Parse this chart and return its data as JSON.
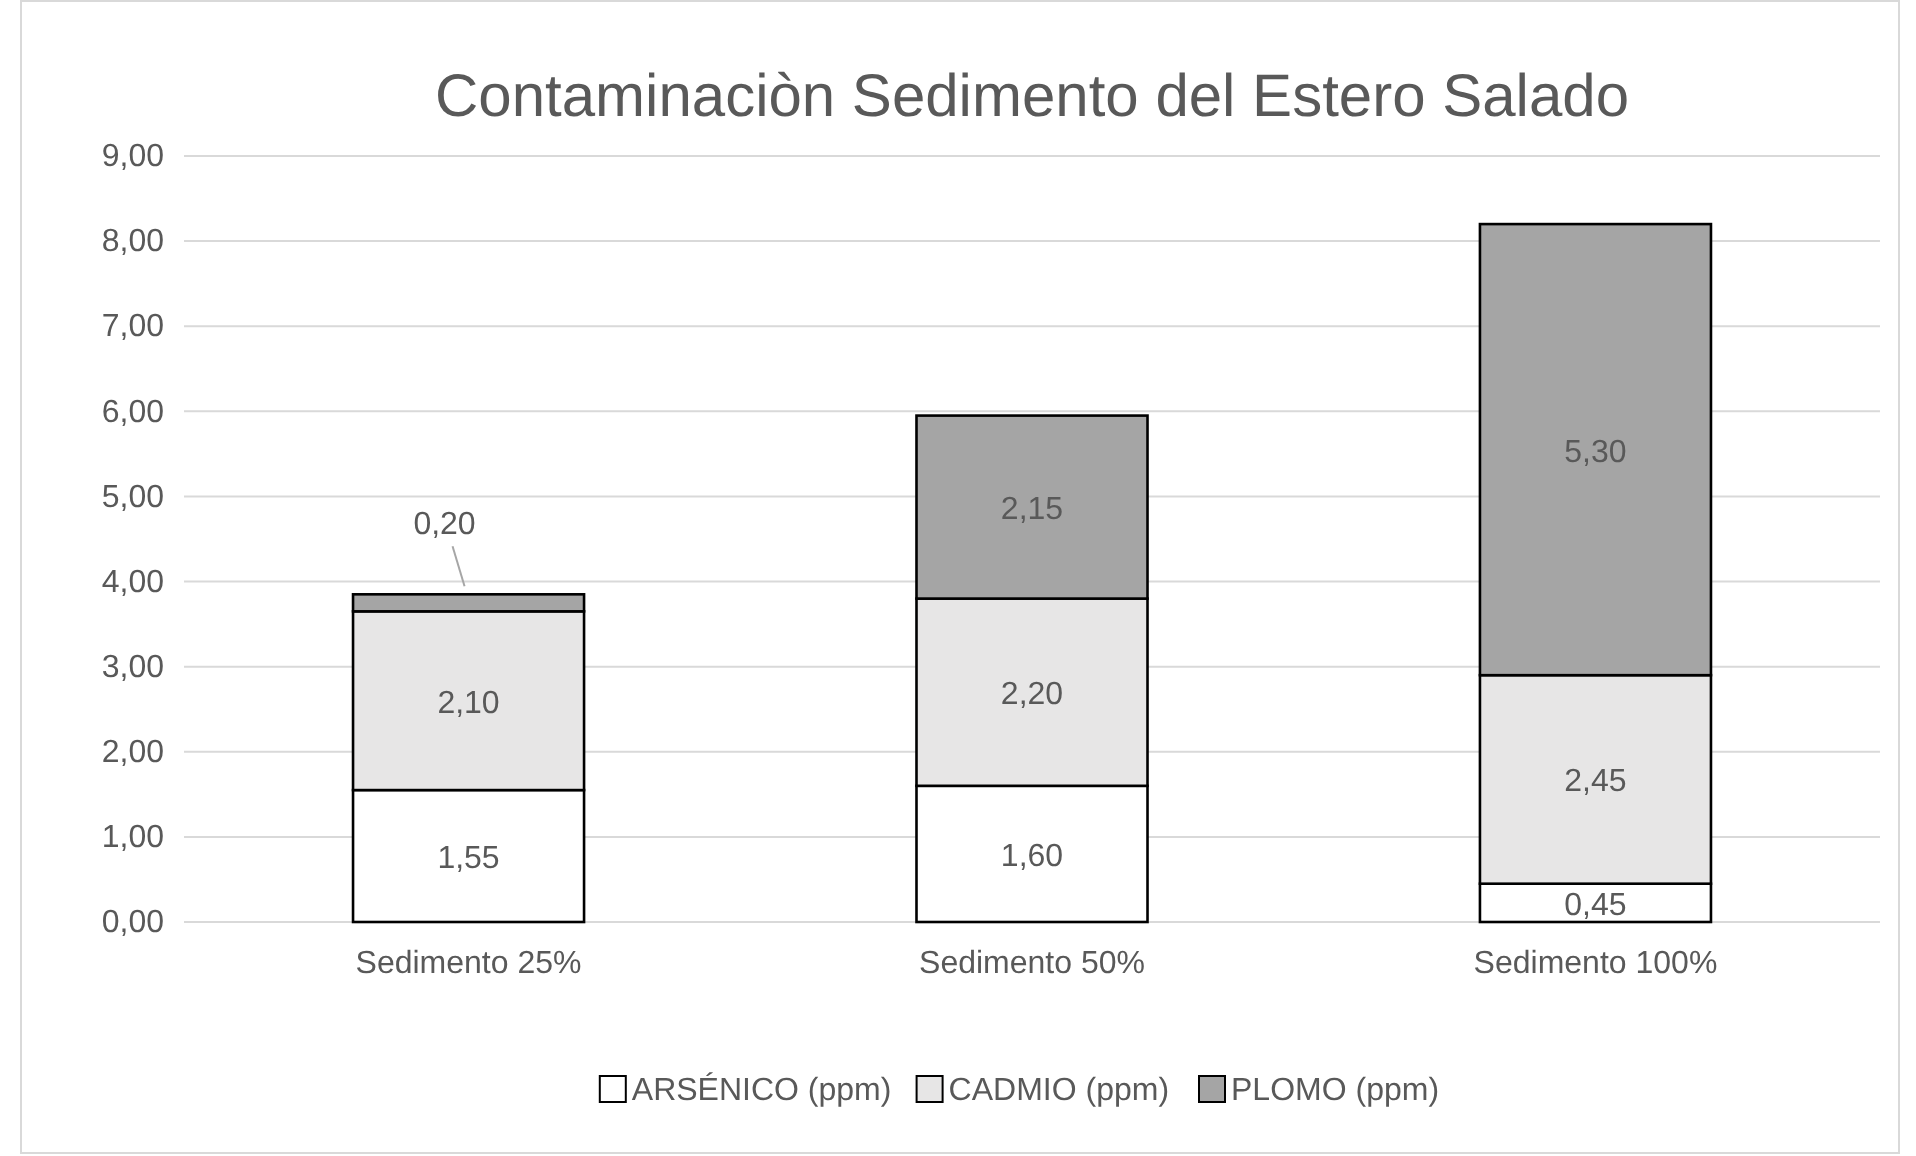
{
  "chart_data": {
    "type": "bar",
    "title": "Contaminaciòn Sedimento del Estero Salado",
    "categories": [
      "Sedimento 25%",
      "Sedimento 50%",
      "Sedimento 100%"
    ],
    "stacked": true,
    "series": [
      {
        "name": "ARSÉNICO (ppm)",
        "color": "#ffffff",
        "values": [
          1.55,
          1.6,
          0.45
        ],
        "value_labels": [
          "1,55",
          "1,60",
          "0,45"
        ]
      },
      {
        "name": "CADMIO (ppm)",
        "color": "#e7e6e6",
        "values": [
          2.1,
          2.2,
          2.45
        ],
        "value_labels": [
          "2,10",
          "2,20",
          "2,45"
        ]
      },
      {
        "name": "PLOMO (ppm)",
        "color": "#a5a5a5",
        "values": [
          0.2,
          2.15,
          5.3
        ],
        "value_labels": [
          "0,20",
          "2,15",
          "5,30"
        ]
      }
    ],
    "ylim": [
      0,
      9
    ],
    "yticks": [
      {
        "value": 0,
        "label": "0,00"
      },
      {
        "value": 1,
        "label": "1,00"
      },
      {
        "value": 2,
        "label": "2,00"
      },
      {
        "value": 3,
        "label": "3,00"
      },
      {
        "value": 4,
        "label": "4,00"
      },
      {
        "value": 5,
        "label": "5,00"
      },
      {
        "value": 6,
        "label": "6,00"
      },
      {
        "value": 7,
        "label": "7,00"
      },
      {
        "value": 8,
        "label": "8,00"
      },
      {
        "value": 9,
        "label": "9,00"
      }
    ],
    "grid": "y",
    "legend": "bottom"
  }
}
